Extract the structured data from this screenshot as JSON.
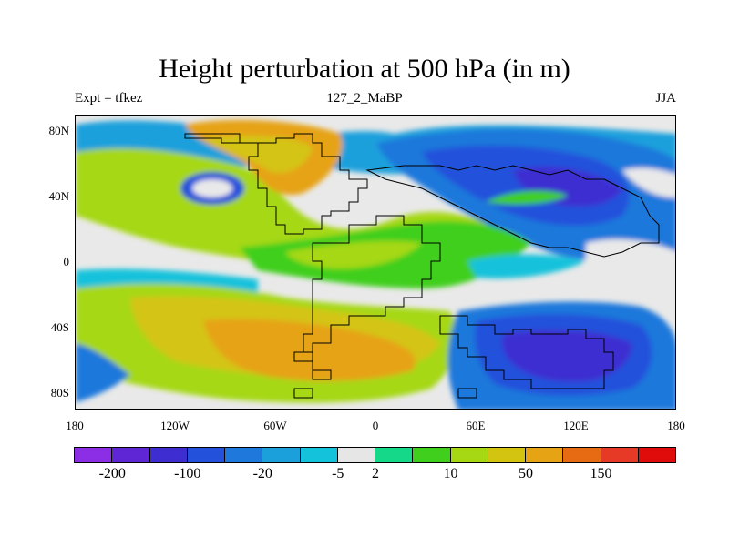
{
  "title": "Height perturbation at 500 hPa (in m)",
  "left_subtitle": "Expt = tfkez",
  "center_subtitle": "127_2_MaBP",
  "right_subtitle": "JJA",
  "map": {
    "lon_range": [
      -180,
      180
    ],
    "lat_range": [
      -90,
      90
    ],
    "y_ticks": [
      {
        "lat": 80,
        "label": "80N"
      },
      {
        "lat": 40,
        "label": "40N"
      },
      {
        "lat": 0,
        "label": "0"
      },
      {
        "lat": -40,
        "label": "40S"
      },
      {
        "lat": -80,
        "label": "80S"
      }
    ],
    "x_ticks": [
      {
        "lon": -180,
        "label": "180"
      },
      {
        "lon": -120,
        "label": "120W"
      },
      {
        "lon": -60,
        "label": "60W"
      },
      {
        "lon": 0,
        "label": "0"
      },
      {
        "lon": 60,
        "label": "60E"
      },
      {
        "lon": 120,
        "label": "120E"
      },
      {
        "lon": 180,
        "label": "180"
      }
    ]
  },
  "colorbar": {
    "colors": [
      "#8c2ee6",
      "#5f26d6",
      "#3e2dd1",
      "#2351db",
      "#1f78db",
      "#1ca0dc",
      "#14c2db",
      "#e6e6e6",
      "#16d889",
      "#3fcf1c",
      "#a6d814",
      "#d4c412",
      "#e6a313",
      "#e66b12",
      "#e63a26",
      "#e00c0c"
    ],
    "labels": [
      {
        "boundary": 1,
        "text": "-200"
      },
      {
        "boundary": 3,
        "text": "-100"
      },
      {
        "boundary": 5,
        "text": "-20"
      },
      {
        "boundary": 7,
        "text": "-5"
      },
      {
        "boundary": 8,
        "text": "2"
      },
      {
        "boundary": 10,
        "text": "10"
      },
      {
        "boundary": 12,
        "text": "50"
      },
      {
        "boundary": 14,
        "text": "150"
      }
    ]
  }
}
